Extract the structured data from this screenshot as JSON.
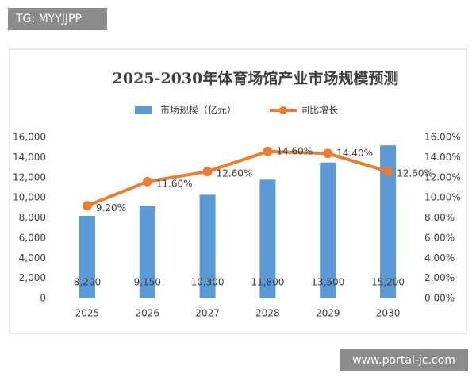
{
  "overlay_top_left": "TG: MYYJJPP",
  "overlay_bottom_right": "www.portal-jc.com",
  "chart_data": {
    "type": "bar_line",
    "title": "2025-2030年体育场馆产业市场规模预测",
    "categories": [
      "2025",
      "2026",
      "2027",
      "2028",
      "2029",
      "2030"
    ],
    "series": [
      {
        "name": "市场规模（亿元）",
        "type": "bar",
        "color": "#5b9bd5",
        "values": [
          8200,
          9150,
          10300,
          11800,
          13500,
          15200
        ],
        "value_labels": [
          "8,200",
          "9,150",
          "10,300",
          "11,800",
          "13,500",
          "15,200"
        ]
      },
      {
        "name": "同比增长",
        "type": "line",
        "axis": "y2",
        "color": "#ed7d31",
        "values": [
          9.2,
          11.6,
          12.6,
          14.6,
          14.4,
          12.6
        ],
        "value_labels": [
          "9.20%",
          "11.60%",
          "12.60%",
          "14.60%",
          "14.40%",
          "12.60%"
        ]
      }
    ],
    "ylim": [
      0,
      16000
    ],
    "yticks": [
      0,
      {
        "value": 2000,
        "label": "2,000"
      },
      {
        "value": 4000,
        "label": "4,000"
      },
      {
        "value": 6000,
        "label": "6,000"
      },
      {
        "value": 8000,
        "label": "8,000"
      },
      {
        "value": 10000,
        "label": "10,000"
      },
      {
        "value": 12000,
        "label": "12,000"
      },
      {
        "value": 14000,
        "label": "14,000"
      },
      {
        "value": 16000,
        "label": "16,000"
      }
    ],
    "y2lim": [
      0,
      16
    ],
    "y2ticks": [
      {
        "value": 0,
        "label": "0.00%"
      },
      {
        "value": 2,
        "label": "2.00%"
      },
      {
        "value": 4,
        "label": "4.00%"
      },
      {
        "value": 6,
        "label": "6.00%"
      },
      {
        "value": 8,
        "label": "8.00%"
      },
      {
        "value": 10,
        "label": "10.00%"
      },
      {
        "value": 12,
        "label": "12.00%"
      },
      {
        "value": 14,
        "label": "14.00%"
      },
      {
        "value": 16,
        "label": "16.00%"
      }
    ],
    "grid": false,
    "legend": "top"
  }
}
